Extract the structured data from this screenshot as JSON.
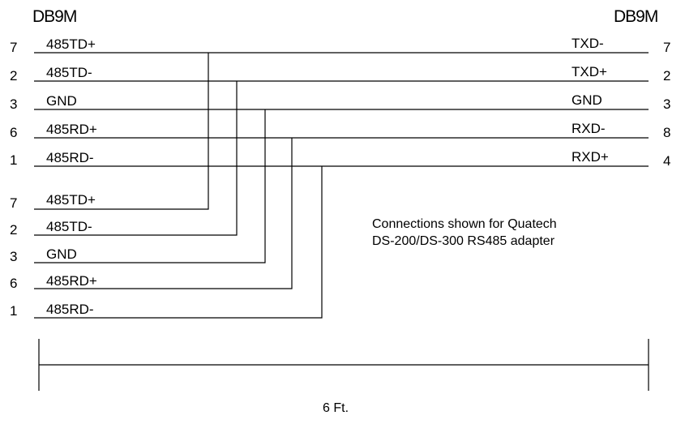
{
  "connector_left": {
    "name": "DB9M",
    "pins": [
      {
        "number": "7",
        "signal": "485TD+"
      },
      {
        "number": "2",
        "signal": "485TD-"
      },
      {
        "number": "3",
        "signal": "GND"
      },
      {
        "number": "6",
        "signal": "485RD+"
      },
      {
        "number": "1",
        "signal": "485RD-"
      }
    ]
  },
  "connector_right": {
    "name": "DB9M",
    "pins": [
      {
        "number": "7",
        "signal": "TXD-"
      },
      {
        "number": "2",
        "signal": "TXD+"
      },
      {
        "number": "3",
        "signal": "GND"
      },
      {
        "number": "8",
        "signal": "RXD-"
      },
      {
        "number": "4",
        "signal": "RXD+"
      }
    ]
  },
  "branch": {
    "pins": [
      {
        "number": "7",
        "signal": "485TD+"
      },
      {
        "number": "2",
        "signal": "485TD-"
      },
      {
        "number": "3",
        "signal": "GND"
      },
      {
        "number": "6",
        "signal": "485RD+"
      },
      {
        "number": "1",
        "signal": "485RD-"
      }
    ]
  },
  "note": {
    "line1": "Connections shown for Quatech",
    "line2": "DS-200/DS-300 RS485 adapter"
  },
  "dimension": {
    "label": "6 Ft."
  },
  "colors": {
    "line": "#000000",
    "background": "#ffffff"
  }
}
